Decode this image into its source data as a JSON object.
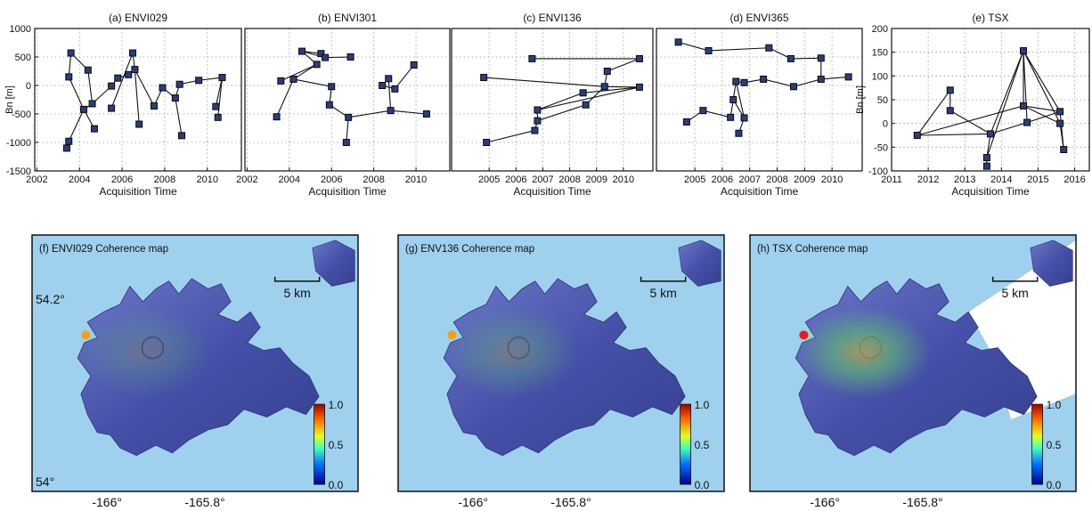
{
  "chart_data": [
    {
      "type": "line",
      "title": "(a) ENVI029",
      "xlabel": "Acquisition Time",
      "ylabel": "Bn [m]",
      "xlim": [
        2001.9,
        2011.6
      ],
      "ylim": [
        -1500,
        1000
      ],
      "xticks": [
        "2002",
        "2004",
        "2006",
        "2008",
        "2010"
      ],
      "yticks": [
        "-1500",
        "-1000",
        "-500",
        "0",
        "500",
        "1000"
      ],
      "grid": true,
      "points": [
        {
          "x": 2003.4,
          "y": -1100
        },
        {
          "x": 2003.5,
          "y": -980
        },
        {
          "x": 2003.5,
          "y": 150
        },
        {
          "x": 2003.6,
          "y": 570
        },
        {
          "x": 2004.2,
          "y": -420
        },
        {
          "x": 2004.4,
          "y": 270
        },
        {
          "x": 2004.6,
          "y": -320
        },
        {
          "x": 2004.7,
          "y": -760
        },
        {
          "x": 2005.5,
          "y": -400
        },
        {
          "x": 2005.5,
          "y": -10
        },
        {
          "x": 2005.8,
          "y": 130
        },
        {
          "x": 2006.3,
          "y": 190
        },
        {
          "x": 2006.5,
          "y": 570
        },
        {
          "x": 2006.6,
          "y": 280
        },
        {
          "x": 2006.8,
          "y": -680
        },
        {
          "x": 2007.5,
          "y": -360
        },
        {
          "x": 2007.9,
          "y": -40
        },
        {
          "x": 2008.5,
          "y": -220
        },
        {
          "x": 2008.7,
          "y": 20
        },
        {
          "x": 2008.8,
          "y": -880
        },
        {
          "x": 2009.6,
          "y": 90
        },
        {
          "x": 2010.4,
          "y": -370
        },
        {
          "x": 2010.5,
          "y": -560
        },
        {
          "x": 2010.7,
          "y": 140
        }
      ],
      "edges": [
        [
          0,
          1
        ],
        [
          1,
          4
        ],
        [
          4,
          2
        ],
        [
          2,
          3
        ],
        [
          3,
          5
        ],
        [
          5,
          6
        ],
        [
          6,
          4
        ],
        [
          4,
          7
        ],
        [
          6,
          9
        ],
        [
          9,
          10
        ],
        [
          10,
          11
        ],
        [
          11,
          13
        ],
        [
          13,
          12
        ],
        [
          13,
          14
        ],
        [
          12,
          8
        ],
        [
          13,
          15
        ],
        [
          15,
          16
        ],
        [
          16,
          17
        ],
        [
          17,
          19
        ],
        [
          17,
          18
        ],
        [
          18,
          20
        ],
        [
          20,
          23
        ],
        [
          23,
          21
        ],
        [
          23,
          22
        ]
      ]
    },
    {
      "type": "line",
      "title": "(b) ENVI301",
      "xlabel": "Acquisition Time",
      "ylabel": "",
      "xlim": [
        2001.9,
        2011.6
      ],
      "ylim": [
        -1500,
        1000
      ],
      "xticks": [
        "2002",
        "2004",
        "2006",
        "2008",
        "2010"
      ],
      "yticks": [],
      "grid": true,
      "points": [
        {
          "x": 2003.4,
          "y": -550
        },
        {
          "x": 2003.6,
          "y": 80
        },
        {
          "x": 2004.2,
          "y": 110
        },
        {
          "x": 2004.6,
          "y": 600
        },
        {
          "x": 2005.3,
          "y": 370
        },
        {
          "x": 2005.5,
          "y": 560
        },
        {
          "x": 2005.7,
          "y": 490
        },
        {
          "x": 2005.9,
          "y": -340
        },
        {
          "x": 2006.0,
          "y": -20
        },
        {
          "x": 2006.8,
          "y": -560
        },
        {
          "x": 2006.7,
          "y": -1000
        },
        {
          "x": 2006.9,
          "y": 500
        },
        {
          "x": 2008.4,
          "y": 0
        },
        {
          "x": 2008.7,
          "y": 120
        },
        {
          "x": 2008.8,
          "y": -440
        },
        {
          "x": 2009.0,
          "y": -60
        },
        {
          "x": 2009.9,
          "y": 360
        },
        {
          "x": 2010.5,
          "y": -500
        }
      ],
      "edges": [
        [
          0,
          2
        ],
        [
          2,
          4
        ],
        [
          4,
          3
        ],
        [
          3,
          5
        ],
        [
          3,
          6
        ],
        [
          6,
          11
        ],
        [
          4,
          1
        ],
        [
          2,
          8
        ],
        [
          8,
          7
        ],
        [
          7,
          9
        ],
        [
          9,
          10
        ],
        [
          9,
          14
        ],
        [
          14,
          17
        ],
        [
          12,
          13
        ],
        [
          13,
          14
        ],
        [
          12,
          15
        ],
        [
          15,
          16
        ],
        [
          5,
          6
        ]
      ]
    },
    {
      "type": "line",
      "title": "(c) ENVI136",
      "xlabel": "Acquisition Time",
      "ylabel": "",
      "xlim": [
        2003.6,
        2011.1
      ],
      "ylim": [
        -1500,
        1000
      ],
      "xticks": [
        "2005",
        "2006",
        "2007",
        "2008",
        "2009",
        "2010"
      ],
      "yticks": [],
      "grid": true,
      "points": [
        {
          "x": 2004.8,
          "y": 140
        },
        {
          "x": 2004.9,
          "y": -1000
        },
        {
          "x": 2006.6,
          "y": 470
        },
        {
          "x": 2006.7,
          "y": -790
        },
        {
          "x": 2006.8,
          "y": -620
        },
        {
          "x": 2006.8,
          "y": -430
        },
        {
          "x": 2008.5,
          "y": -130
        },
        {
          "x": 2008.6,
          "y": -340
        },
        {
          "x": 2009.3,
          "y": -20
        },
        {
          "x": 2009.4,
          "y": 250
        },
        {
          "x": 2010.6,
          "y": 470
        },
        {
          "x": 2010.6,
          "y": -30
        }
      ],
      "edges": [
        [
          1,
          3
        ],
        [
          3,
          4
        ],
        [
          4,
          5
        ],
        [
          5,
          6
        ],
        [
          4,
          7
        ],
        [
          7,
          8
        ],
        [
          0,
          8
        ],
        [
          8,
          9
        ],
        [
          9,
          10
        ],
        [
          10,
          2
        ],
        [
          8,
          11
        ],
        [
          6,
          11
        ],
        [
          5,
          11
        ]
      ]
    },
    {
      "type": "line",
      "title": "(d) ENVI365",
      "xlabel": "Acquisition Time",
      "ylabel": "",
      "xlim": [
        2003.6,
        2011.1
      ],
      "ylim": [
        -1500,
        1000
      ],
      "xticks": [
        "2005",
        "2006",
        "2007",
        "2008",
        "2009",
        "2010"
      ],
      "yticks": [],
      "grid": true,
      "points": [
        {
          "x": 2004.4,
          "y": 760
        },
        {
          "x": 2004.7,
          "y": -640
        },
        {
          "x": 2005.3,
          "y": -440
        },
        {
          "x": 2005.5,
          "y": 610
        },
        {
          "x": 2006.3,
          "y": -560
        },
        {
          "x": 2006.4,
          "y": -250
        },
        {
          "x": 2006.5,
          "y": 70
        },
        {
          "x": 2006.6,
          "y": -840
        },
        {
          "x": 2006.8,
          "y": -570
        },
        {
          "x": 2006.8,
          "y": 50
        },
        {
          "x": 2007.5,
          "y": 110
        },
        {
          "x": 2007.7,
          "y": 660
        },
        {
          "x": 2008.5,
          "y": 470
        },
        {
          "x": 2008.6,
          "y": -20
        },
        {
          "x": 2009.6,
          "y": 480
        },
        {
          "x": 2009.6,
          "y": 110
        },
        {
          "x": 2010.6,
          "y": 150
        }
      ],
      "edges": [
        [
          0,
          3
        ],
        [
          3,
          11
        ],
        [
          11,
          12
        ],
        [
          12,
          14
        ],
        [
          14,
          15
        ],
        [
          15,
          16
        ],
        [
          15,
          13
        ],
        [
          13,
          10
        ],
        [
          10,
          9
        ],
        [
          9,
          6
        ],
        [
          6,
          5
        ],
        [
          5,
          4
        ],
        [
          4,
          2
        ],
        [
          2,
          1
        ],
        [
          5,
          8
        ],
        [
          8,
          7
        ],
        [
          6,
          8
        ]
      ]
    },
    {
      "type": "line",
      "title": "(e) TSX",
      "xlabel": "Acquisition Time",
      "ylabel": "Bn [m]",
      "xlim": [
        2011.0,
        2016.4
      ],
      "ylim": [
        -100,
        200
      ],
      "xticks": [
        "2011",
        "2012",
        "2013",
        "2014",
        "2015",
        "2016"
      ],
      "yticks": [
        "-100",
        "-50",
        "0",
        "50",
        "100",
        "150",
        "200"
      ],
      "grid": true,
      "points": [
        {
          "x": 2011.7,
          "y": -25
        },
        {
          "x": 2012.6,
          "y": 70
        },
        {
          "x": 2012.6,
          "y": 27
        },
        {
          "x": 2013.6,
          "y": -72
        },
        {
          "x": 2013.6,
          "y": -90
        },
        {
          "x": 2013.7,
          "y": -22
        },
        {
          "x": 2014.6,
          "y": 153
        },
        {
          "x": 2014.6,
          "y": 37
        },
        {
          "x": 2014.7,
          "y": 2
        },
        {
          "x": 2015.6,
          "y": 25
        },
        {
          "x": 2015.6,
          "y": 0
        },
        {
          "x": 2015.7,
          "y": -55
        }
      ],
      "edges": [
        [
          0,
          1
        ],
        [
          1,
          2
        ],
        [
          2,
          5
        ],
        [
          0,
          5
        ],
        [
          0,
          7
        ],
        [
          5,
          3
        ],
        [
          3,
          4
        ],
        [
          5,
          6
        ],
        [
          5,
          8
        ],
        [
          6,
          7
        ],
        [
          6,
          8
        ],
        [
          6,
          9
        ],
        [
          6,
          10
        ],
        [
          7,
          9
        ],
        [
          8,
          9
        ],
        [
          7,
          10
        ],
        [
          10,
          11
        ],
        [
          9,
          11
        ],
        [
          3,
          6
        ]
      ]
    }
  ],
  "maps": [
    {
      "title": "(f) ENVI029 Coherence map",
      "scale_label": "5 km",
      "lat_labels": [
        "54.2°",
        "54°"
      ],
      "lon_labels": [
        "-166°",
        "-165.8°"
      ],
      "colorbar_ticks": [
        "1.0",
        "0.5",
        "0.0"
      ],
      "coherence_level": 0.2
    },
    {
      "title": "(g) ENV136 Coherence map",
      "scale_label": "5 km",
      "lon_labels": [
        "-166°",
        "-165.8°"
      ],
      "colorbar_ticks": [
        "1.0",
        "0.5",
        "0.0"
      ],
      "coherence_level": 0.28
    },
    {
      "title": "(h) TSX Coherence map",
      "scale_label": "5 km",
      "lon_labels": [
        "-166°",
        "-165.8°"
      ],
      "colorbar_ticks": [
        "1.0",
        "0.5",
        "0.0"
      ],
      "coherence_level": 0.6
    }
  ]
}
